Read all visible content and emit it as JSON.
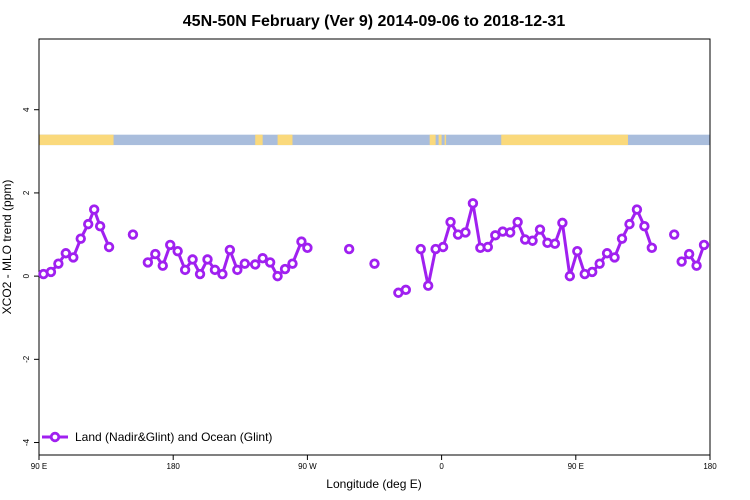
{
  "chart_data": {
    "type": "line",
    "title": "45N-50N February (Ver 9)   2014-09-06 to 2018-12-31",
    "xlabel": "Longitude (deg E)",
    "ylabel": "XCO2 - MLO trend (ppm)",
    "xlim": [
      90,
      540
    ],
    "ylim": [
      -4.3,
      5.7
    ],
    "x_ticks": [
      {
        "value": 90,
        "label": "90 E"
      },
      {
        "value": 180,
        "label": "180"
      },
      {
        "value": 270,
        "label": "90 W"
      },
      {
        "value": 360,
        "label": "0"
      },
      {
        "value": 450,
        "label": "90 E"
      },
      {
        "value": 540,
        "label": "180"
      }
    ],
    "y_ticks": [
      {
        "value": -4,
        "label": "-4"
      },
      {
        "value": -2,
        "label": "-2"
      },
      {
        "value": 0,
        "label": "0"
      },
      {
        "value": 2,
        "label": "2"
      },
      {
        "value": 4,
        "label": "4"
      }
    ],
    "grid": false,
    "legend_position": "bottom-left",
    "land_ocean_strip": {
      "y_range": [
        3.15,
        3.4
      ],
      "land_color": "#fad97c",
      "ocean_color": "#a9bddc",
      "land_segments": [
        [
          90,
          140
        ],
        [
          235,
          240
        ],
        [
          250,
          260
        ],
        [
          352,
          356
        ],
        [
          358,
          360
        ],
        [
          362,
          363
        ],
        [
          400,
          485
        ]
      ]
    },
    "series": [
      {
        "name": "Land (Nadir&Glint) and Ocean (Glint)",
        "color": "#a020f0",
        "segments": [
          [
            [
              93,
              0.05
            ],
            [
              98,
              0.1
            ],
            [
              103,
              0.3
            ],
            [
              108,
              0.55
            ],
            [
              113,
              0.45
            ],
            [
              118,
              0.9
            ],
            [
              123,
              1.25
            ],
            [
              127,
              1.6
            ],
            [
              131,
              1.2
            ],
            [
              137,
              0.7
            ]
          ],
          [
            [
              153,
              1.0
            ]
          ],
          [
            [
              163,
              0.33
            ],
            [
              168,
              0.53
            ],
            [
              173,
              0.25
            ],
            [
              178,
              0.75
            ],
            [
              183,
              0.6
            ],
            [
              188,
              0.15
            ],
            [
              193,
              0.4
            ],
            [
              198,
              0.05
            ],
            [
              203,
              0.4
            ],
            [
              208,
              0.15
            ],
            [
              213,
              0.05
            ],
            [
              218,
              0.63
            ],
            [
              223,
              0.15
            ],
            [
              228,
              0.3
            ],
            [
              235,
              0.28
            ],
            [
              240,
              0.43
            ],
            [
              245,
              0.33
            ],
            [
              250,
              0.0
            ],
            [
              255,
              0.17
            ],
            [
              260,
              0.3
            ],
            [
              266,
              0.83
            ],
            [
              270,
              0.68
            ]
          ],
          [
            [
              298,
              0.65
            ]
          ],
          [
            [
              315,
              0.3
            ]
          ],
          [
            [
              331,
              -0.4
            ],
            [
              336,
              -0.33
            ]
          ],
          [
            [
              346,
              0.65
            ],
            [
              351,
              -0.23
            ],
            [
              356,
              0.65
            ],
            [
              361,
              0.7
            ],
            [
              366,
              1.3
            ],
            [
              371,
              1.0
            ],
            [
              376,
              1.05
            ],
            [
              381,
              1.75
            ],
            [
              386,
              0.68
            ],
            [
              391,
              0.7
            ],
            [
              396,
              0.98
            ],
            [
              401,
              1.07
            ],
            [
              406,
              1.05
            ],
            [
              411,
              1.3
            ],
            [
              416,
              0.88
            ],
            [
              421,
              0.85
            ],
            [
              426,
              1.12
            ],
            [
              431,
              0.8
            ],
            [
              436,
              0.78
            ],
            [
              441,
              1.28
            ],
            [
              446,
              0.0
            ],
            [
              451,
              0.6
            ],
            [
              456,
              0.05
            ],
            [
              461,
              0.1
            ],
            [
              466,
              0.3
            ],
            [
              471,
              0.55
            ],
            [
              476,
              0.45
            ],
            [
              481,
              0.9
            ],
            [
              486,
              1.25
            ],
            [
              491,
              1.6
            ],
            [
              496,
              1.2
            ],
            [
              501,
              0.68
            ]
          ],
          [
            [
              516,
              1.0
            ]
          ],
          [
            [
              521,
              0.35
            ],
            [
              526,
              0.53
            ],
            [
              531,
              0.25
            ],
            [
              536,
              0.75
            ]
          ]
        ]
      }
    ]
  }
}
